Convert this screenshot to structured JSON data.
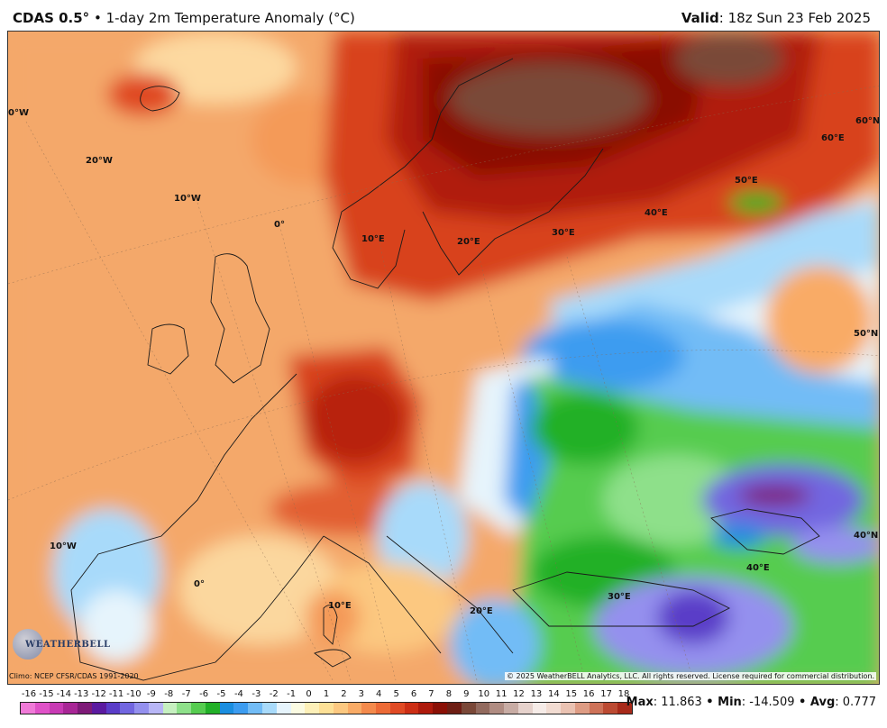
{
  "header": {
    "model": "CDAS 0.5",
    "degree_mark": "°",
    "separator": " • ",
    "subtitle": "1-day 2m Temperature Anomaly (°C)",
    "valid_label": "Valid",
    "valid_value": ": 18z Sun 23 Feb 2025"
  },
  "map": {
    "labels": {
      "lon_0w_top": "0°W",
      "lon_20w": "20°W",
      "lon_10w_top": "10°W",
      "lon_0_north": "0°",
      "lon_10e_north": "10°E",
      "lon_20e_north": "20°E",
      "lon_30e_north": "30°E",
      "lon_40e_north": "40°E",
      "lon_50e_north": "50°E",
      "lon_60e": "60°E",
      "lat_60n": "60°N",
      "lat_50n": "50°N",
      "lat_40n": "40°N",
      "lon_10w_south": "10°W",
      "lon_0_south": "0°",
      "lon_10e_south": "10°E",
      "lon_20e_south": "20°E",
      "lon_30e_south": "30°E",
      "lon_40e_south": "40°E"
    }
  },
  "footer": {
    "climo": "Climo: NCEP CFSR/CDAS 1991-2020",
    "copyright": "© 2025 WeatherBELL Analytics, LLC. All rights reserved. License required for commercial distribution.",
    "logo_text": "WEATHERBELL"
  },
  "colorbar": {
    "ticks": [
      "-16",
      "-15",
      "-14",
      "-13",
      "-12",
      "-11",
      "-10",
      "-9",
      "-8",
      "-7",
      "-6",
      "-5",
      "-4",
      "-3",
      "-2",
      "-1",
      "0",
      "1",
      "2",
      "3",
      "4",
      "5",
      "6",
      "7",
      "8",
      "9",
      "10",
      "11",
      "12",
      "13",
      "14",
      "15",
      "16",
      "17",
      "18"
    ],
    "colors": [
      "#f07ad8",
      "#e052c8",
      "#c83ab4",
      "#a82696",
      "#7e1a78",
      "#5b1aa0",
      "#5a3cc8",
      "#7266e0",
      "#9490ee",
      "#b8b6f6",
      "#c6f0c0",
      "#8ee08a",
      "#56cc50",
      "#22b028",
      "#1a8ee0",
      "#3c9cf0",
      "#72bcf6",
      "#a8dafa",
      "#e6f4fc",
      "#fbfbe2",
      "#fdf0b8",
      "#fde096",
      "#fcc880",
      "#f9ab66",
      "#f48a4c",
      "#ec6a36",
      "#e04a24",
      "#cc2e14",
      "#ae1a0c",
      "#8a1006",
      "#6e1e14",
      "#7a4838",
      "#926a5e",
      "#b08c82",
      "#c8aca4",
      "#e6d2cc",
      "#f6ece8",
      "#f2dcd2",
      "#eac2b2",
      "#de9c84",
      "#ce7258",
      "#bc4a32",
      "#a82a1a"
    ],
    "stats_max_label": "Max",
    "stats_max_value": ": 11.863",
    "stats_min_label": "Min",
    "stats_min_value": ": -14.509",
    "stats_avg_label": "Avg",
    "stats_avg_value": ": 0.777",
    "stats_sep": " • "
  }
}
